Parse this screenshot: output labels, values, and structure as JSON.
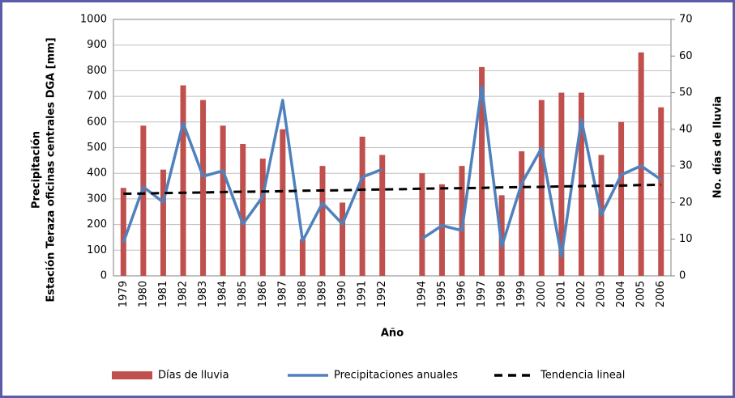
{
  "chart_data": {
    "type": "combo",
    "ylabel": [
      "Precipitación",
      "Estación Teraza oficinas centrales DGA [mm]"
    ],
    "y2label": "No. días de lluvia",
    "xlabel": "Año",
    "categories": [
      "1979",
      "1980",
      "1981",
      "1982",
      "1983",
      "1984",
      "1985",
      "1986",
      "1987",
      "1988",
      "1989",
      "1990",
      "1991",
      "1992",
      null,
      "1994",
      "1995",
      "1996",
      "1997",
      "1998",
      "1999",
      "2000",
      "2001",
      "2002",
      "2003",
      "2004",
      "2005",
      "2006"
    ],
    "series": [
      {
        "name": "Días de lluvia",
        "type": "bar",
        "axis": "y2",
        "color": "#c0504d",
        "values": [
          24,
          41,
          29,
          52,
          48,
          41,
          36,
          32,
          40,
          10,
          30,
          20,
          38,
          33,
          null,
          28,
          25,
          30,
          57,
          22,
          34,
          48,
          50,
          50,
          33,
          42,
          61,
          46
        ]
      },
      {
        "name": "Precipitaciones anuales",
        "type": "line",
        "color": "#4f81bd",
        "values": [
          130,
          347,
          287,
          596,
          388,
          410,
          202,
          309,
          685,
          136,
          284,
          202,
          385,
          416,
          null,
          145,
          196,
          177,
          738,
          114,
          360,
          498,
          76,
          609,
          237,
          394,
          429,
          375
        ]
      },
      {
        "name": "Tendencia lineal",
        "type": "line",
        "dashed": true,
        "color": "#000000",
        "values": [
          320,
          321,
          323,
          324,
          325,
          327,
          328,
          329,
          330,
          332,
          333,
          334,
          336,
          337,
          338,
          340,
          341,
          342,
          343,
          345,
          346,
          347,
          349,
          350,
          351,
          352,
          354,
          355
        ]
      }
    ],
    "ylim": [
      0,
      1000
    ],
    "yticks": [
      0,
      100,
      200,
      300,
      400,
      500,
      600,
      700,
      800,
      900,
      1000
    ],
    "y2lim": [
      0,
      70
    ],
    "y2ticks": [
      0,
      10,
      20,
      30,
      40,
      50,
      60,
      70
    ],
    "grid": true,
    "legend": "bottom"
  }
}
